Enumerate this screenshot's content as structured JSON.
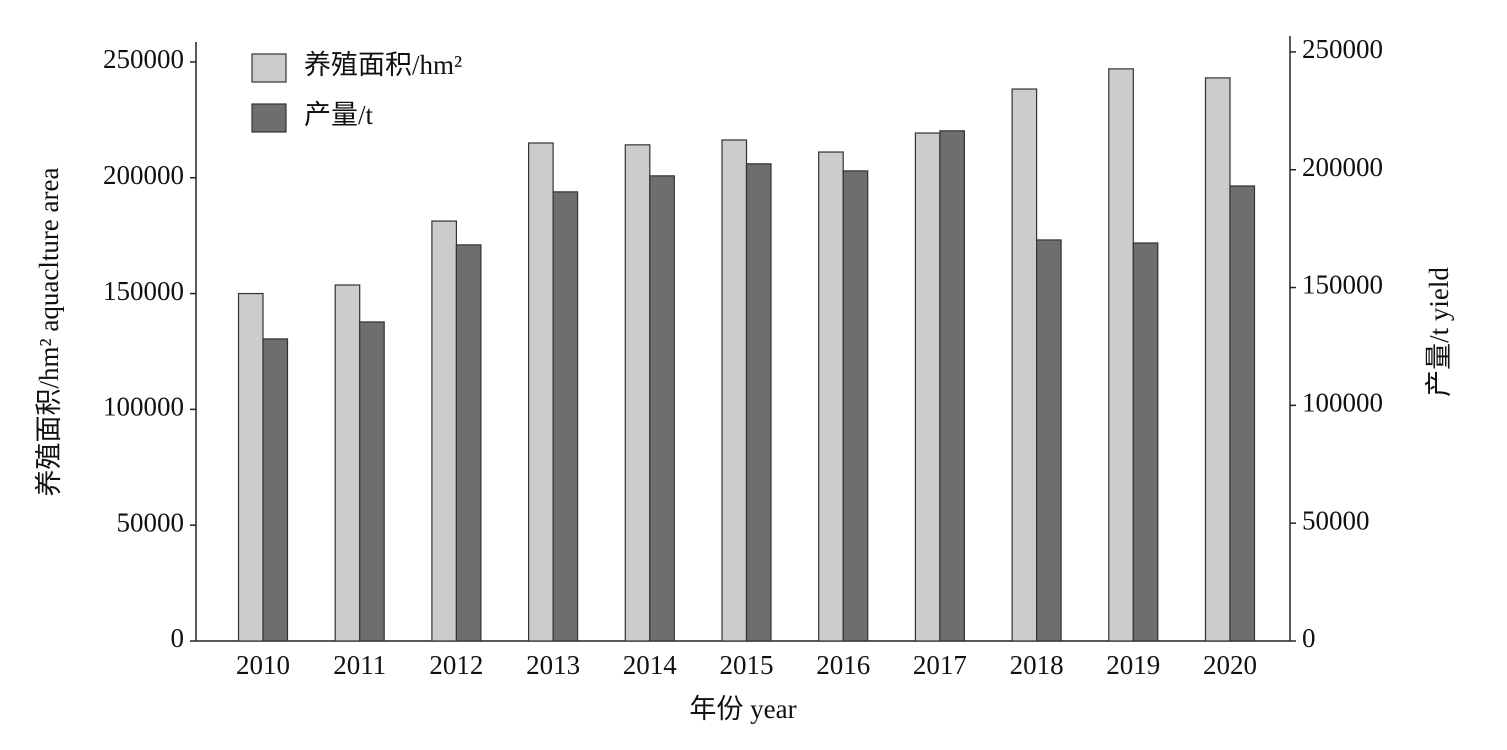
{
  "chart_data": {
    "type": "bar",
    "x_label": "年份 year",
    "y_label": "养殖面积/hm² aquaclture area",
    "y2_label": "产量/t yield",
    "categories": [
      "2010",
      "2011",
      "2012",
      "2013",
      "2014",
      "2015",
      "2016",
      "2017",
      "2018",
      "2019",
      "2020"
    ],
    "series": [
      {
        "name": "养殖面积/hm²",
        "color": "#cccccc",
        "values": [
          150000,
          153700,
          181300,
          215000,
          214200,
          216300,
          211100,
          219300,
          238300,
          247000,
          243100
        ]
      },
      {
        "name": "产量/t",
        "color": "#6e6e6e",
        "axis": "y2",
        "values": [
          128200,
          135400,
          168100,
          190600,
          197400,
          202500,
          199500,
          216500,
          170200,
          168900,
          193100
        ]
      }
    ],
    "ylim": [
      0,
      258600
    ],
    "yticks": [
      0,
      50000,
      100000,
      150000,
      200000,
      250000
    ],
    "y2lim": [
      0,
      254200
    ],
    "y2ticks": [
      0,
      50000,
      100000,
      150000,
      200000,
      250000
    ],
    "legend": "upper-left",
    "grid": false
  }
}
